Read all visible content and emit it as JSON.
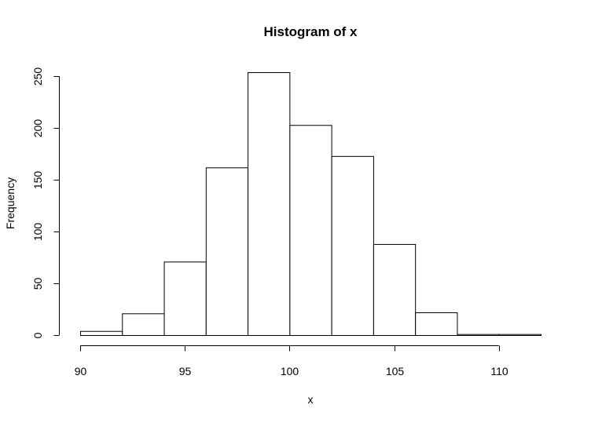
{
  "chart_data": {
    "type": "bar",
    "title": "Histogram of x",
    "xlabel": "x",
    "ylabel": "Frequency",
    "bins": [
      {
        "start": 90,
        "end": 92,
        "count": 4
      },
      {
        "start": 92,
        "end": 94,
        "count": 21
      },
      {
        "start": 94,
        "end": 96,
        "count": 71
      },
      {
        "start": 96,
        "end": 98,
        "count": 162
      },
      {
        "start": 98,
        "end": 100,
        "count": 254
      },
      {
        "start": 100,
        "end": 102,
        "count": 203
      },
      {
        "start": 102,
        "end": 104,
        "count": 173
      },
      {
        "start": 104,
        "end": 106,
        "count": 88
      },
      {
        "start": 106,
        "end": 108,
        "count": 22
      },
      {
        "start": 108,
        "end": 110,
        "count": 1
      },
      {
        "start": 110,
        "end": 112,
        "count": 1
      }
    ],
    "xlim": [
      90,
      112
    ],
    "ylim": [
      0,
      254
    ],
    "xticks": [
      90,
      95,
      100,
      105,
      110
    ],
    "yticks": [
      0,
      50,
      100,
      150,
      200,
      250
    ],
    "grid": false
  }
}
